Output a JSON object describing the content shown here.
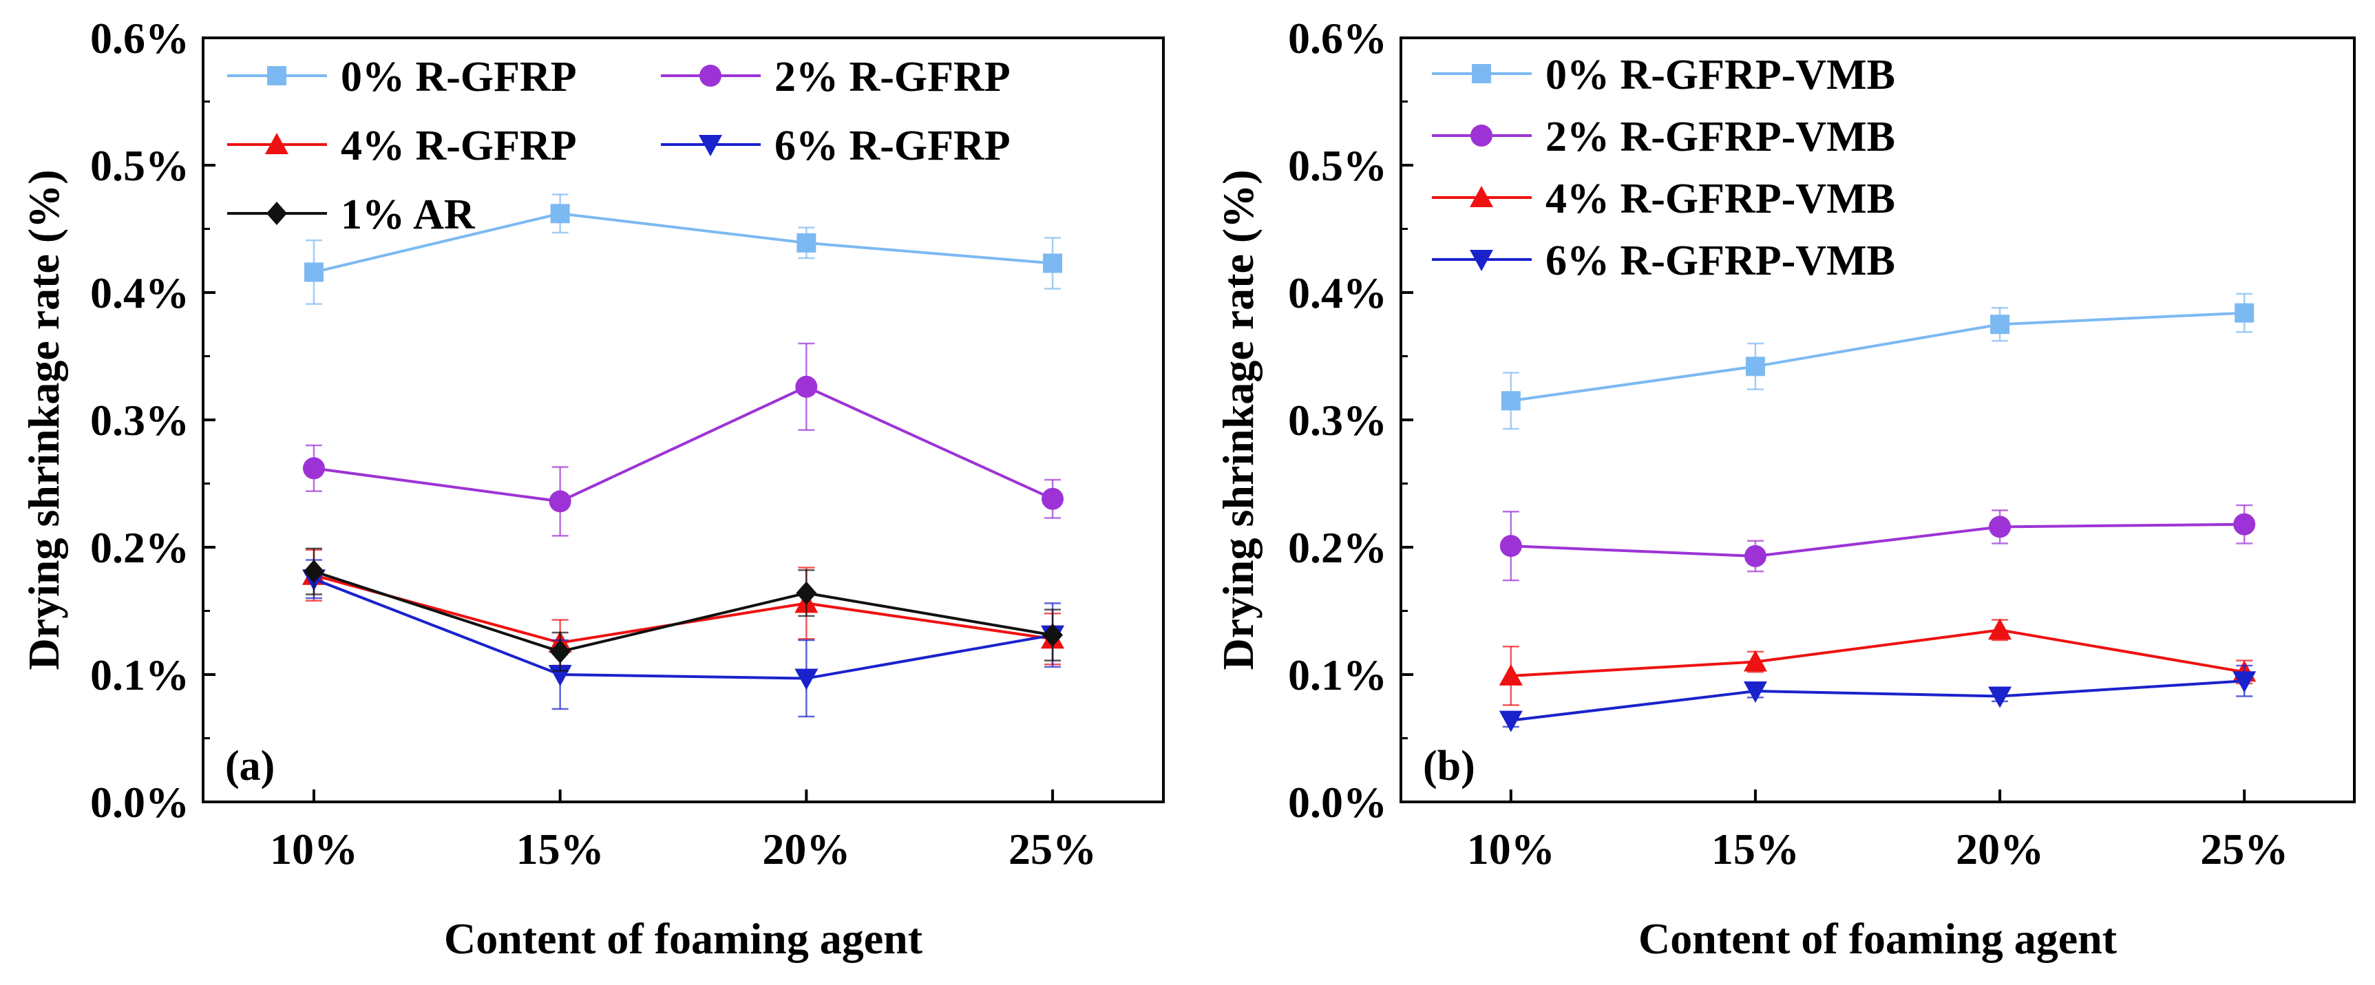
{
  "chart_data": [
    {
      "type": "line",
      "panel_label": "(a)",
      "xlabel": "Content of foaming agent",
      "ylabel": "Drying shrinkage rate (%)",
      "categories": [
        "10%",
        "15%",
        "20%",
        "25%"
      ],
      "ylim": [
        0,
        0.6
      ],
      "yticks": [
        0.0,
        0.1,
        0.2,
        0.3,
        0.4,
        0.5,
        0.6
      ],
      "ytick_labels": [
        "0.0%",
        "0.1%",
        "0.2%",
        "0.3%",
        "0.4%",
        "0.5%",
        "0.6%"
      ],
      "legend_position": "top-left",
      "series": [
        {
          "name": "0% R-GFRP",
          "color": "#7cb9f2",
          "marker": "square",
          "values": [
            0.416,
            0.462,
            0.439,
            0.423
          ],
          "errors": [
            0.025,
            0.015,
            0.012,
            0.02
          ]
        },
        {
          "name": "2% R-GFRP",
          "color": "#9d33d6",
          "marker": "circle",
          "values": [
            0.262,
            0.236,
            0.326,
            0.238
          ],
          "errors": [
            0.018,
            0.027,
            0.034,
            0.015
          ]
        },
        {
          "name": "4% R-GFRP",
          "color": "#ee1111",
          "marker": "triangle-up",
          "values": [
            0.178,
            0.125,
            0.156,
            0.128
          ],
          "errors": [
            0.02,
            0.018,
            0.028,
            0.02
          ]
        },
        {
          "name": "6% R-GFRP",
          "color": "#1a22cc",
          "marker": "triangle-down",
          "values": [
            0.175,
            0.1,
            0.097,
            0.131
          ],
          "errors": [
            0.015,
            0.027,
            0.03,
            0.025
          ]
        },
        {
          "name": "1% AR",
          "color": "#111111",
          "marker": "diamond",
          "values": [
            0.181,
            0.118,
            0.164,
            0.131
          ],
          "errors": [
            0.018,
            0.015,
            0.018,
            0.02
          ]
        }
      ]
    },
    {
      "type": "line",
      "panel_label": "(b)",
      "xlabel": "Content of foaming agent",
      "ylabel": "Drying shrinkage rate (%)",
      "categories": [
        "10%",
        "15%",
        "20%",
        "25%"
      ],
      "ylim": [
        0,
        0.6
      ],
      "yticks": [
        0.0,
        0.1,
        0.2,
        0.3,
        0.4,
        0.5,
        0.6
      ],
      "ytick_labels": [
        "0.0%",
        "0.1%",
        "0.2%",
        "0.3%",
        "0.4%",
        "0.5%",
        "0.6%"
      ],
      "legend_position": "top-left",
      "series": [
        {
          "name": "0% R-GFRP-VMB",
          "color": "#7cb9f2",
          "marker": "square",
          "values": [
            0.315,
            0.342,
            0.375,
            0.384
          ],
          "errors": [
            0.022,
            0.018,
            0.013,
            0.015
          ]
        },
        {
          "name": "2% R-GFRP-VMB",
          "color": "#9d33d6",
          "marker": "circle",
          "values": [
            0.201,
            0.193,
            0.216,
            0.218
          ],
          "errors": [
            0.027,
            0.012,
            0.013,
            0.015
          ]
        },
        {
          "name": "4% R-GFRP-VMB",
          "color": "#ee1111",
          "marker": "triangle-up",
          "values": [
            0.099,
            0.11,
            0.135,
            0.102
          ],
          "errors": [
            0.023,
            0.008,
            0.008,
            0.009
          ]
        },
        {
          "name": "6% R-GFRP-VMB",
          "color": "#1a22cc",
          "marker": "triangle-down",
          "values": [
            0.064,
            0.087,
            0.083,
            0.095
          ],
          "errors": [
            0.005,
            0.005,
            0.004,
            0.012
          ]
        }
      ]
    }
  ]
}
